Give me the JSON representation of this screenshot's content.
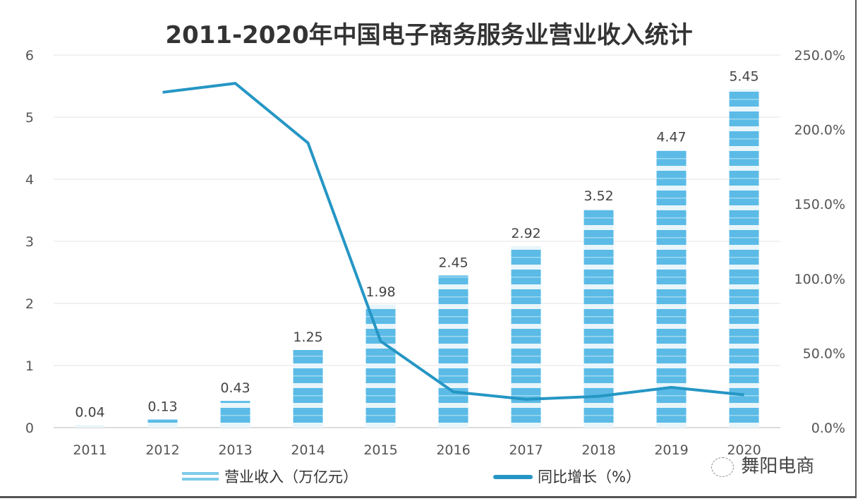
{
  "chart_data": {
    "type": "bar+line",
    "title": "2011-2020年中国电子商务服务业营业收入统计",
    "categories": [
      "2011",
      "2012",
      "2013",
      "2014",
      "2015",
      "2016",
      "2017",
      "2018",
      "2019",
      "2020"
    ],
    "series": [
      {
        "name": "营业收入（万亿元）",
        "type": "bar",
        "axis": "left",
        "color": "#5bbbe6",
        "values": [
          0.04,
          0.13,
          0.43,
          1.25,
          1.98,
          2.45,
          2.92,
          3.52,
          4.47,
          5.45
        ],
        "labels": [
          "0.04",
          "0.13",
          "0.43",
          "1.25",
          "1.98",
          "2.45",
          "2.92",
          "3.52",
          "4.47",
          "5.45"
        ]
      },
      {
        "name": "同比增长（%）",
        "type": "line",
        "axis": "right",
        "color": "#2596c4",
        "values": [
          null,
          225,
          231,
          191,
          58,
          24,
          19,
          21,
          27,
          22
        ]
      }
    ],
    "left_axis": {
      "min": 0,
      "max": 6,
      "ticks": [
        "0",
        "1",
        "2",
        "3",
        "4",
        "5",
        "6"
      ]
    },
    "right_axis": {
      "min": 0,
      "max": 250,
      "ticks": [
        "0.0%",
        "50.0%",
        "100.0%",
        "150.0%",
        "200.0%",
        "250.0%"
      ]
    },
    "grid": true,
    "legend": "bottom"
  },
  "watermark": "舞阳电商"
}
